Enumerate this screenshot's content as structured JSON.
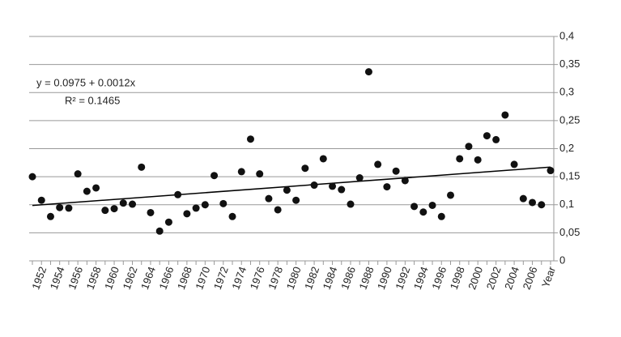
{
  "chart_data": {
    "type": "scatter",
    "categories": [
      null,
      "1952",
      null,
      "1954",
      null,
      "1956",
      null,
      "1958",
      null,
      "1960",
      null,
      "1962",
      null,
      "1964",
      null,
      "1966",
      null,
      "1968",
      null,
      "1970",
      null,
      "1972",
      null,
      "1974",
      null,
      "1976",
      null,
      "1978",
      null,
      "1980",
      null,
      "1982",
      null,
      "1984",
      null,
      "1986",
      null,
      "1988",
      null,
      "1990",
      null,
      "1992",
      null,
      "1994",
      null,
      "1996",
      null,
      "1998",
      null,
      "2000",
      null,
      "2002",
      null,
      "2004",
      null,
      "2006",
      null,
      "Year"
    ],
    "values": [
      0.15,
      0.108,
      0.079,
      0.095,
      0.094,
      0.155,
      0.124,
      0.13,
      0.09,
      0.093,
      0.103,
      0.101,
      0.167,
      0.086,
      0.053,
      0.069,
      0.118,
      0.084,
      0.094,
      0.1,
      0.152,
      0.102,
      0.079,
      0.159,
      0.217,
      0.155,
      0.111,
      0.091,
      0.126,
      0.108,
      0.165,
      0.135,
      0.182,
      0.133,
      0.127,
      0.101,
      0.148,
      0.337,
      0.172,
      0.132,
      0.16,
      0.143,
      0.097,
      0.087,
      0.099,
      0.079,
      0.117,
      0.182,
      0.204,
      0.18,
      0.223,
      0.216,
      0.26,
      0.172,
      0.111,
      0.104,
      0.1,
      0.161
    ],
    "color": "#111111",
    "ylim": [
      0,
      0.4
    ],
    "yticks": [
      0,
      {
        "value": 0.05,
        "label": "0,05"
      },
      {
        "value": 0.1,
        "label": "0,1"
      },
      {
        "value": 0.15,
        "label": "0,15"
      },
      {
        "value": 0.2,
        "label": "0,2"
      },
      {
        "value": 0.25,
        "label": "0,25"
      },
      {
        "value": 0.3,
        "label": "0,3"
      },
      {
        "value": 0.35,
        "label": "0,35"
      },
      {
        "value": 0.4,
        "label": "0,4"
      }
    ],
    "grid": true,
    "trendline": {
      "label": "y = 0.0975 + 0.0012x",
      "r2_label": "R² = 0.1465",
      "intercept": 0.0975,
      "slope": 0.0012
    }
  }
}
